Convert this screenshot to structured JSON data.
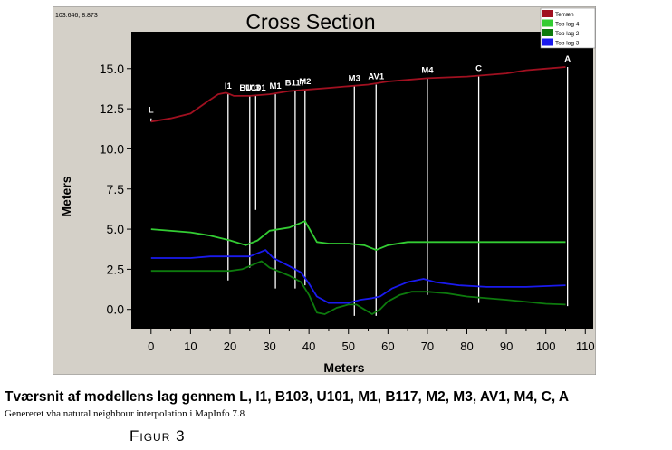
{
  "chart_data": {
    "type": "line",
    "title": "Cross Section",
    "cursor_readout": "103.646, 8.873",
    "xlabel": "Meters",
    "ylabel": "Meters",
    "xlim": [
      -5,
      112
    ],
    "ylim": [
      -1.2,
      17.3
    ],
    "xticks": [
      0,
      10,
      20,
      30,
      40,
      50,
      60,
      70,
      80,
      90,
      100,
      110
    ],
    "yticks": [
      0.0,
      2.5,
      5.0,
      7.5,
      10.0,
      12.5,
      15.0
    ],
    "ytick_labels": [
      "0.0",
      "2.5",
      "5.0",
      "7.5",
      "10.0",
      "12.5",
      "15.0"
    ],
    "grid": false,
    "legend_position": "top-right",
    "series": [
      {
        "name": "Terræn",
        "color": "#a01020",
        "points": [
          [
            0,
            11.7
          ],
          [
            5,
            11.9
          ],
          [
            10,
            12.2
          ],
          [
            14,
            12.9
          ],
          [
            17,
            13.4
          ],
          [
            19,
            13.5
          ],
          [
            21,
            13.3
          ],
          [
            25,
            13.3
          ],
          [
            30,
            13.4
          ],
          [
            35,
            13.6
          ],
          [
            40,
            13.7
          ],
          [
            45,
            13.8
          ],
          [
            50,
            13.9
          ],
          [
            55,
            14.0
          ],
          [
            60,
            14.2
          ],
          [
            65,
            14.3
          ],
          [
            70,
            14.4
          ],
          [
            80,
            14.5
          ],
          [
            85,
            14.6
          ],
          [
            90,
            14.7
          ],
          [
            95,
            14.9
          ],
          [
            100,
            15.0
          ],
          [
            105,
            15.1
          ]
        ]
      },
      {
        "name": "Top lag 4",
        "color": "#33cc33",
        "points": [
          [
            0,
            5.0
          ],
          [
            10,
            4.8
          ],
          [
            15,
            4.6
          ],
          [
            20,
            4.3
          ],
          [
            24,
            4.0
          ],
          [
            27,
            4.3
          ],
          [
            30,
            4.9
          ],
          [
            35,
            5.1
          ],
          [
            39,
            5.5
          ],
          [
            42,
            4.2
          ],
          [
            45,
            4.1
          ],
          [
            50,
            4.1
          ],
          [
            54,
            4.0
          ],
          [
            57,
            3.7
          ],
          [
            60,
            4.0
          ],
          [
            65,
            4.2
          ],
          [
            70,
            4.2
          ],
          [
            90,
            4.2
          ],
          [
            105,
            4.2
          ]
        ]
      },
      {
        "name": "Top lag 2",
        "color": "#0d7a0d",
        "points": [
          [
            0,
            2.4
          ],
          [
            10,
            2.4
          ],
          [
            15,
            2.4
          ],
          [
            20,
            2.4
          ],
          [
            23,
            2.5
          ],
          [
            26,
            2.8
          ],
          [
            28,
            3.0
          ],
          [
            30,
            2.6
          ],
          [
            35,
            2.1
          ],
          [
            38,
            1.7
          ],
          [
            40,
            0.9
          ],
          [
            42,
            -0.2
          ],
          [
            44,
            -0.3
          ],
          [
            47,
            0.1
          ],
          [
            50,
            0.3
          ],
          [
            52,
            0.3
          ],
          [
            54,
            0.0
          ],
          [
            56,
            -0.3
          ],
          [
            58,
            0.0
          ],
          [
            60,
            0.5
          ],
          [
            63,
            0.9
          ],
          [
            66,
            1.1
          ],
          [
            70,
            1.1
          ],
          [
            75,
            1.0
          ],
          [
            80,
            0.8
          ],
          [
            90,
            0.6
          ],
          [
            100,
            0.35
          ],
          [
            105,
            0.3
          ]
        ]
      },
      {
        "name": "Top lag 3",
        "color": "#1a1aee",
        "points": [
          [
            0,
            3.2
          ],
          [
            10,
            3.2
          ],
          [
            15,
            3.3
          ],
          [
            20,
            3.3
          ],
          [
            25,
            3.3
          ],
          [
            27,
            3.5
          ],
          [
            29,
            3.7
          ],
          [
            31,
            3.2
          ],
          [
            35,
            2.7
          ],
          [
            38,
            2.3
          ],
          [
            40,
            1.6
          ],
          [
            42,
            0.8
          ],
          [
            45,
            0.4
          ],
          [
            50,
            0.4
          ],
          [
            53,
            0.6
          ],
          [
            56,
            0.7
          ],
          [
            58,
            0.8
          ],
          [
            61,
            1.3
          ],
          [
            65,
            1.7
          ],
          [
            69,
            1.9
          ],
          [
            72,
            1.7
          ],
          [
            78,
            1.5
          ],
          [
            85,
            1.4
          ],
          [
            95,
            1.4
          ],
          [
            105,
            1.5
          ]
        ]
      }
    ],
    "annotations": [
      {
        "label": "L",
        "x": 0,
        "y_top": 11.9,
        "y_bottom": 11.7
      },
      {
        "label": "I1",
        "x": 19.5,
        "y_top": 13.4,
        "y_bottom": 1.8
      },
      {
        "label": "B103",
        "x": 25,
        "y_top": 13.3,
        "y_bottom": 2.6
      },
      {
        "label": "U101",
        "x": 26.5,
        "y_top": 13.3,
        "y_bottom": 6.2
      },
      {
        "label": "M1",
        "x": 31.5,
        "y_top": 13.4,
        "y_bottom": 1.3
      },
      {
        "label": "B117",
        "x": 36.5,
        "y_top": 13.6,
        "y_bottom": 1.3
      },
      {
        "label": "M2",
        "x": 39,
        "y_top": 13.7,
        "y_bottom": 1.5
      },
      {
        "label": "M3",
        "x": 51.5,
        "y_top": 13.9,
        "y_bottom": -0.4
      },
      {
        "label": "AV1",
        "x": 57,
        "y_top": 14.0,
        "y_bottom": -0.4
      },
      {
        "label": "M4",
        "x": 70,
        "y_top": 14.4,
        "y_bottom": 0.9
      },
      {
        "label": "C",
        "x": 83,
        "y_top": 14.5,
        "y_bottom": 0.4
      },
      {
        "label": "A",
        "x": 105.5,
        "y_top": 15.1,
        "y_bottom": 0.2
      }
    ]
  },
  "caption": {
    "title": "Tværsnit af modellens lag gennem L, I1, B103, U101, M1, B117, M2, M3, AV1, M4, C, A",
    "subtitle": "Genereret vha natural neighbour interpolation i MapInfo 7.8",
    "figure_label": "Figur 3"
  }
}
